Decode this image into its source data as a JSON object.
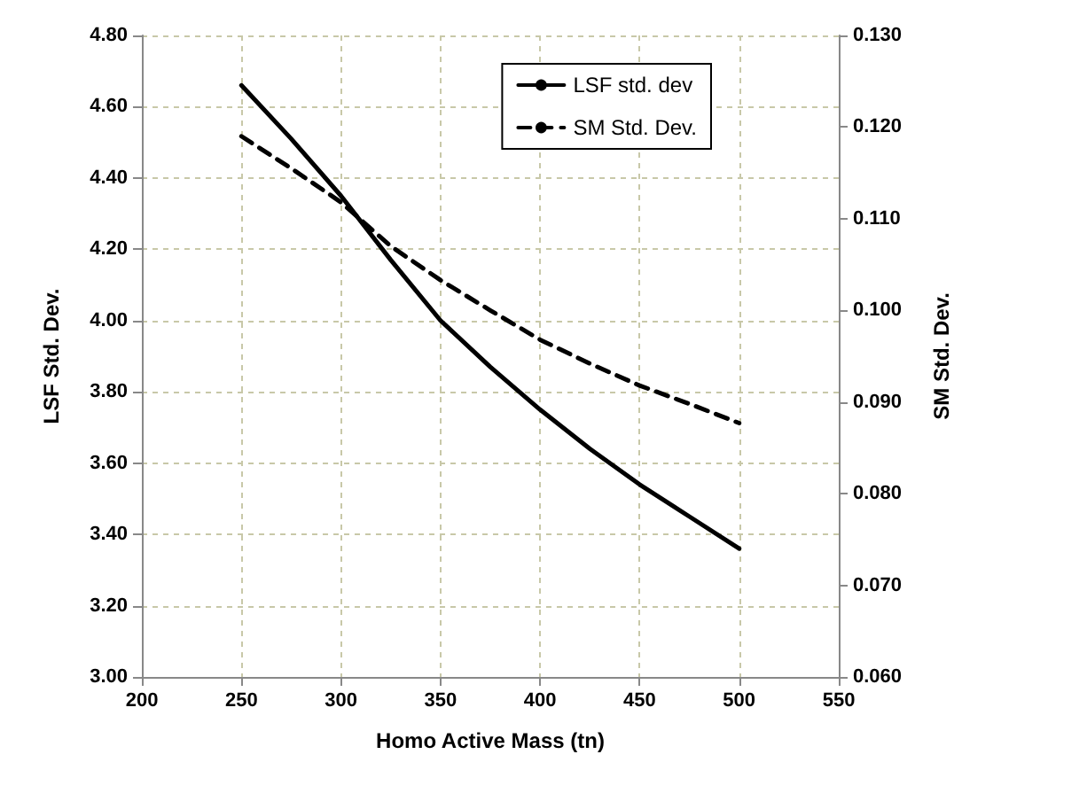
{
  "chart_data": {
    "type": "line",
    "xlabel": "Homo Active Mass (tn)",
    "ylabel": "LSF Std. Dev.",
    "y2label": "SM Std. Dev.",
    "x": [
      250,
      275,
      300,
      325,
      350,
      375,
      400,
      425,
      450,
      475,
      500
    ],
    "series": [
      {
        "name": "LSF std. dev",
        "color": "#000000",
        "line_style": "solid",
        "values": [
          4.66,
          4.51,
          4.35,
          4.17,
          4.0,
          3.87,
          3.75,
          3.64,
          3.54,
          3.45,
          3.36
        ]
      },
      {
        "name": "SM Std. Dev.",
        "color": "#000000",
        "line_style": "dashed",
        "axis": "y2",
        "values": [
          0.119,
          0.1155,
          0.1118,
          0.107,
          0.1033,
          0.1,
          0.0968,
          0.0942,
          0.0918,
          0.0898,
          0.0877
        ]
      }
    ],
    "xlim": [
      200,
      550
    ],
    "xticks": [
      200,
      250,
      300,
      350,
      400,
      450,
      500,
      550
    ],
    "ylim": [
      3.0,
      4.8
    ],
    "yticks": [
      {
        "value": 3.0,
        "label": "3.00"
      },
      {
        "value": 3.2,
        "label": "3.20"
      },
      {
        "value": 3.4,
        "label": "3.40"
      },
      {
        "value": 3.6,
        "label": "3.60"
      },
      {
        "value": 3.8,
        "label": "3.80"
      },
      {
        "value": 4.0,
        "label": "4.00"
      },
      {
        "value": 4.2,
        "label": "4.20"
      },
      {
        "value": 4.4,
        "label": "4.40"
      },
      {
        "value": 4.6,
        "label": "4.60"
      },
      {
        "value": 4.8,
        "label": "4.80"
      }
    ],
    "y2lim": [
      0.06,
      0.13
    ],
    "y2ticks": [
      {
        "value": 0.06,
        "label": "0.060"
      },
      {
        "value": 0.07,
        "label": "0.070"
      },
      {
        "value": 0.08,
        "label": "0.080"
      },
      {
        "value": 0.09,
        "label": "0.090"
      },
      {
        "value": 0.1,
        "label": "0.100"
      },
      {
        "value": 0.11,
        "label": "0.110"
      },
      {
        "value": 0.12,
        "label": "0.120"
      },
      {
        "value": 0.13,
        "label": "0.130"
      }
    ],
    "grid": true,
    "legend": "top right",
    "marker": "none"
  }
}
